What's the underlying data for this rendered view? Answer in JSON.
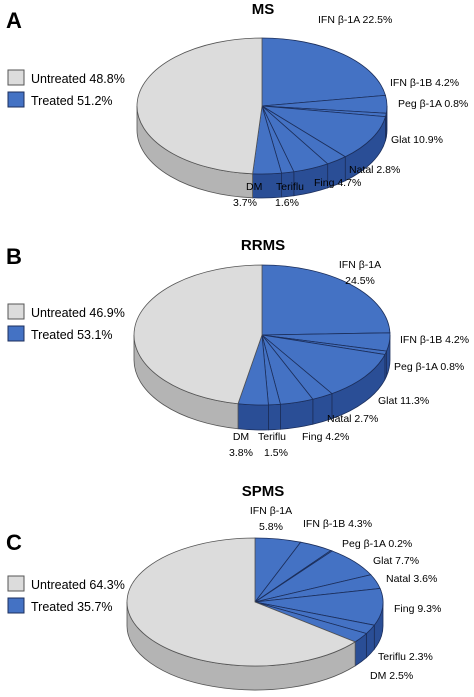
{
  "colors": {
    "treated": "#4472c4",
    "treated_dark": "#2a4e96",
    "treated_stroke": "#1c2f5c",
    "untreated": "#dcdcdc",
    "untreated_dark": "#b4b4b4",
    "outline": "#555555"
  },
  "chart_data": [
    {
      "type": "pie",
      "panel_letter": "A",
      "title": "MS",
      "legend": [
        "Untreated 48.8%",
        "Treated 51.2%"
      ],
      "series": [
        {
          "name": "Untreated",
          "value": 48.8
        },
        {
          "name": "Treated",
          "value": 51.2,
          "breakdown": [
            {
              "label": "IFN β-1A 22.5%",
              "value": 22.5
            },
            {
              "label": "IFN β-1B 4.2%",
              "value": 4.2
            },
            {
              "label": "Peg β-1A 0.8%",
              "value": 0.8
            },
            {
              "label": "Glat 10.9%",
              "value": 10.9
            },
            {
              "label": "Natal 2.8%",
              "value": 2.8
            },
            {
              "label": "Fing 4.7%",
              "value": 4.7
            },
            {
              "label": "Teriflu 1.6%",
              "value": 1.6
            },
            {
              "label": "DM 3.7%",
              "value": 3.7
            }
          ]
        }
      ]
    },
    {
      "type": "pie",
      "panel_letter": "B",
      "title": "RRMS",
      "legend": [
        "Untreated 46.9%",
        "Treated 53.1%"
      ],
      "series": [
        {
          "name": "Untreated",
          "value": 46.9
        },
        {
          "name": "Treated",
          "value": 53.1,
          "breakdown": [
            {
              "label": "IFN β-1A 24.5%",
              "value": 24.5
            },
            {
              "label": "IFN β-1B 4.2%",
              "value": 4.2
            },
            {
              "label": "Peg β-1A 0.8%",
              "value": 0.8
            },
            {
              "label": "Glat 11.3%",
              "value": 11.3
            },
            {
              "label": "Natal 2.7%",
              "value": 2.7
            },
            {
              "label": "Fing 4.2%",
              "value": 4.2
            },
            {
              "label": "Teriflu 1.5%",
              "value": 1.5
            },
            {
              "label": "DM 3.8%",
              "value": 3.8
            }
          ]
        }
      ]
    },
    {
      "type": "pie",
      "panel_letter": "C",
      "title": "SPMS",
      "legend": [
        "Untreated 64.3%",
        "Treated 35.7%"
      ],
      "series": [
        {
          "name": "Untreated",
          "value": 64.3
        },
        {
          "name": "Treated",
          "value": 35.7,
          "breakdown": [
            {
              "label": "IFN β-1A 5.8%",
              "value": 5.8
            },
            {
              "label": "IFN β-1B 4.3%",
              "value": 4.3
            },
            {
              "label": "Peg β-1A 0.2%",
              "value": 0.2
            },
            {
              "label": "Glat 7.7%",
              "value": 7.7
            },
            {
              "label": "Natal 3.6%",
              "value": 3.6
            },
            {
              "label": "Fing 9.3%",
              "value": 9.3
            },
            {
              "label": "Teriflu 2.3%",
              "value": 2.3
            },
            {
              "label": "DM 2.5%",
              "value": 2.5
            }
          ]
        }
      ]
    }
  ]
}
